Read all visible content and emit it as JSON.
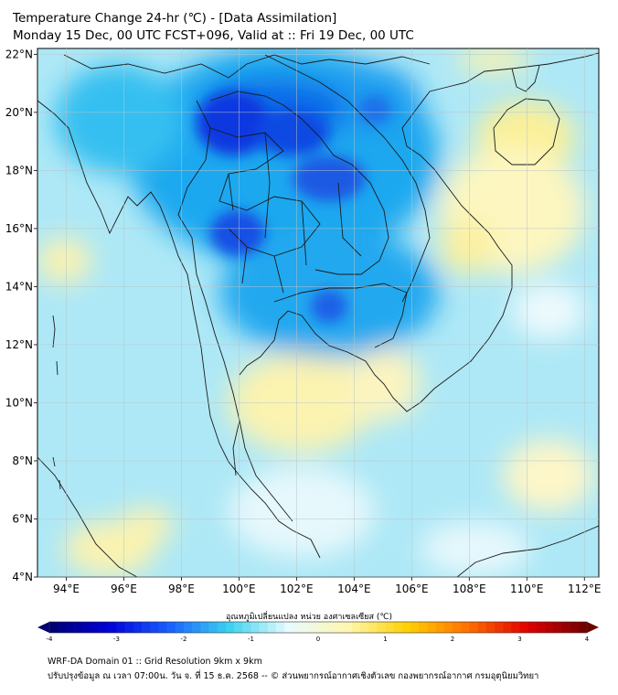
{
  "title": {
    "line1": "Temperature Change 24-hr (℃) - [Data Assimilation]",
    "line2": "Monday 15 Dec, 00 UTC FCST+096, Valid at :: Fri 19 Dec, 00 UTC"
  },
  "map": {
    "lat_labels": [
      "22°N",
      "20°N",
      "18°N",
      "16°N",
      "14°N",
      "12°N",
      "10°N",
      "8°N",
      "6°N",
      "4°N"
    ],
    "lon_labels": [
      "94°E",
      "96°E",
      "98°E",
      "100°E",
      "102°E",
      "104°E",
      "106°E",
      "108°E",
      "110°E",
      "112°E"
    ],
    "lat_values": [
      22,
      20,
      18,
      16,
      14,
      12,
      10,
      8,
      6,
      4
    ],
    "lon_values": [
      94,
      96,
      98,
      100,
      102,
      104,
      106,
      108,
      110,
      112
    ],
    "extent": {
      "lon_min": 93,
      "lon_max": 112.5,
      "lat_min": 4,
      "lat_max": 22.2
    },
    "colors": {
      "background": "#aee8f6",
      "strong_cold": "#0a3ae0",
      "cold": "#22b4ee",
      "mild": "#d8f4fb",
      "warm": "#fbf3a8",
      "border": "#1a1a1a"
    }
  },
  "colorbar": {
    "label": "อุณหภูมิเปลี่ยนแปลง หน่วย องศาเซลเซียส (℃)",
    "ticks": [
      "-4",
      "-3",
      "-2",
      "-1",
      "0",
      "1",
      "2",
      "3",
      "4"
    ],
    "tick_values": [
      -4,
      -3,
      -2,
      -1,
      0,
      1,
      2,
      3,
      4
    ],
    "stops": [
      "#00006e",
      "#0000d8",
      "#1a5fff",
      "#3ad1ee",
      "#e8fbff",
      "#fff7b0",
      "#ffd000",
      "#ff7000",
      "#e00000",
      "#6e0000"
    ]
  },
  "footer": {
    "line1": "WRF-DA Domain 01 :: Grid Resolution 9km x 9km",
    "line2": "ปรับปรุงข้อมูล ณ เวลา 07:00น. วัน จ. ที่ 15 ธ.ค. 2568 -- © ส่วนพยากรณ์อากาศเชิงตัวเลข กองพยากรณ์อากาศ กรมอุตุนิยมวิทยา"
  }
}
